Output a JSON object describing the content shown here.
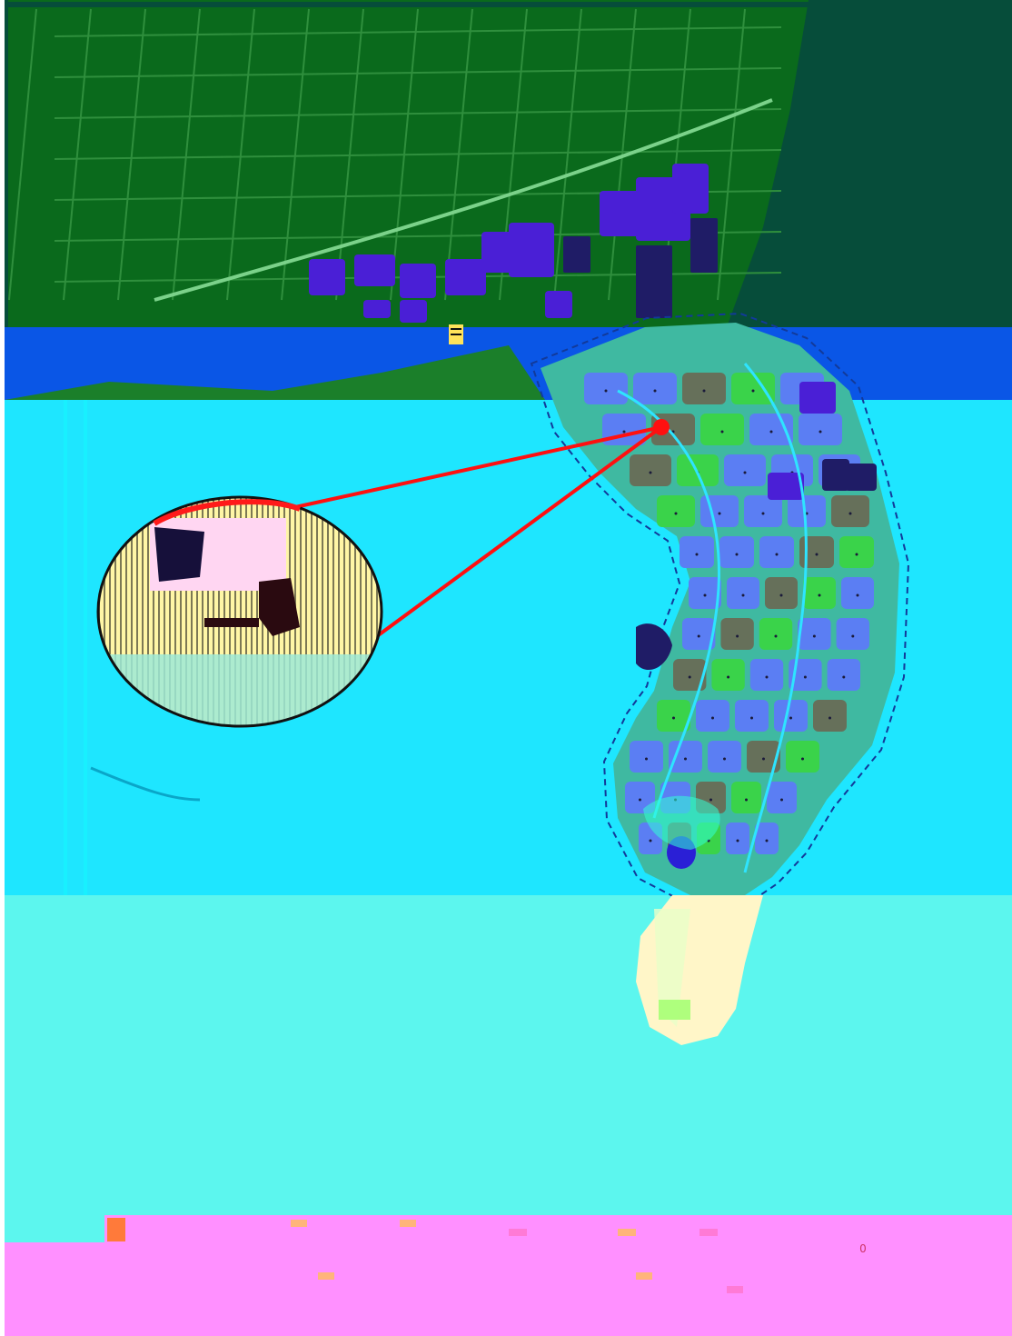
{
  "map": {
    "palette": {
      "upland": "#0a6a1c",
      "upland_block": "#1b7f2a",
      "sea_dark": "#064d3a",
      "band_blue": "#0a56e6",
      "lagoon": "#1ee6ff",
      "lagoon_light": "#18f0ff",
      "shallows": "#5cf6ee",
      "legend_bar": "#ff90ff",
      "street": "#3fb9a1",
      "district_blue": "#5b7ef3",
      "district_olive": "#66705a",
      "district_green": "#3ad34a",
      "purple_block": "#4a1fd6",
      "navy_block": "#1f1c66",
      "sand": "#fff6bd",
      "zoom_pointer": "#ff1010"
    },
    "icons": [
      "north-arrow-icon",
      "callout-pin-icon"
    ],
    "legend": {
      "sample_numeral": "0"
    }
  }
}
